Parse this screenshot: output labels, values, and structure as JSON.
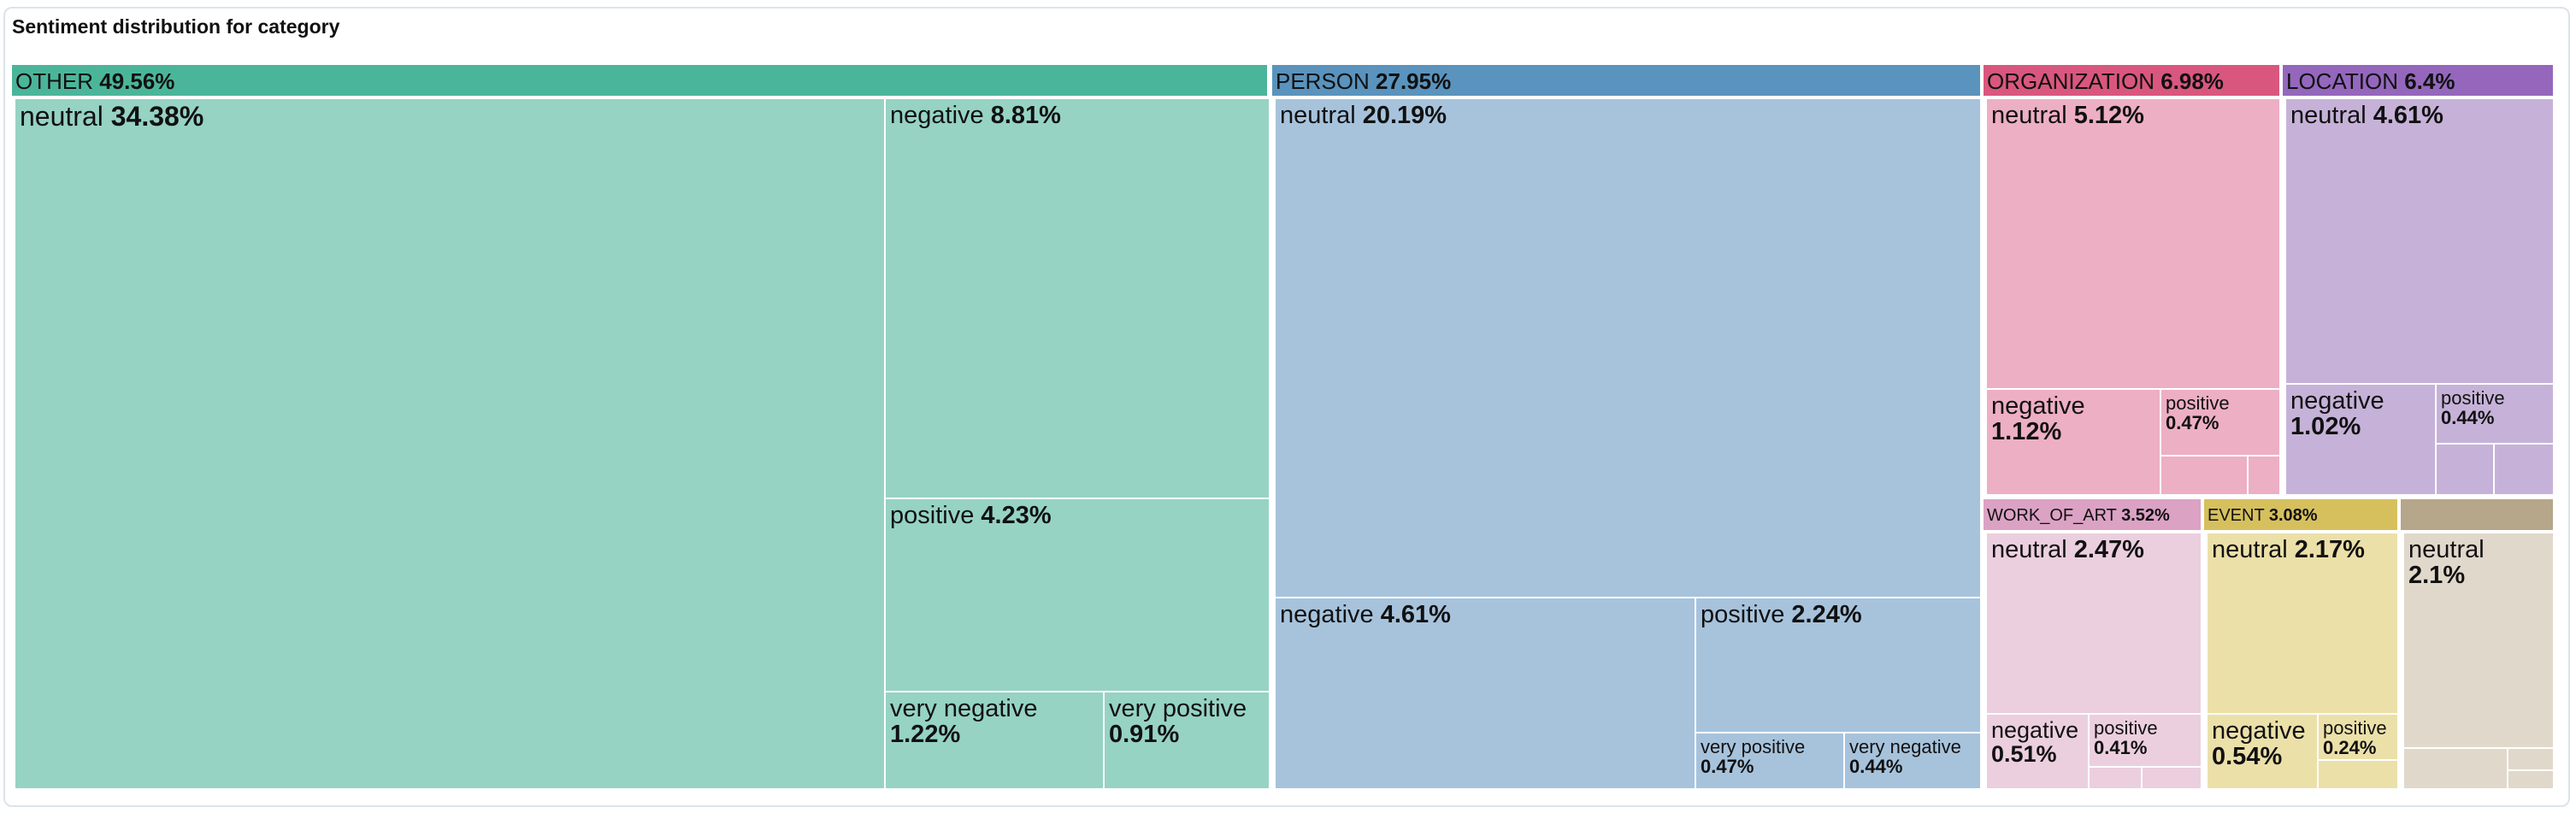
{
  "title": "Sentiment distribution for category",
  "chart_data": {
    "type": "treemap",
    "title": "Sentiment distribution for category",
    "categories": [
      {
        "name": "OTHER",
        "percent": "49.56%",
        "color": "#4bb59a",
        "leaf_color": "#96d3c3",
        "children": [
          {
            "name": "neutral",
            "percent": "34.38%"
          },
          {
            "name": "negative",
            "percent": "8.81%"
          },
          {
            "name": "positive",
            "percent": "4.23%"
          },
          {
            "name": "very negative",
            "percent": "1.22%"
          },
          {
            "name": "very positive",
            "percent": "0.91%"
          }
        ]
      },
      {
        "name": "PERSON",
        "percent": "27.95%",
        "color": "#5a93bd",
        "leaf_color": "#a7c3dc",
        "children": [
          {
            "name": "neutral",
            "percent": "20.19%"
          },
          {
            "name": "negative",
            "percent": "4.61%"
          },
          {
            "name": "positive",
            "percent": "2.24%"
          },
          {
            "name": "very positive",
            "percent": "0.47%"
          },
          {
            "name": "very negative",
            "percent": "0.44%"
          }
        ]
      },
      {
        "name": "ORGANIZATION",
        "percent": "6.98%",
        "color": "#d9577e",
        "leaf_color": "#edafc3",
        "children": [
          {
            "name": "neutral",
            "percent": "5.12%"
          },
          {
            "name": "negative",
            "percent": "1.12%"
          },
          {
            "name": "positive",
            "percent": "0.47%"
          },
          {
            "name": "",
            "percent": ""
          },
          {
            "name": "",
            "percent": ""
          }
        ]
      },
      {
        "name": "LOCATION",
        "percent": "6.4%",
        "color": "#9467bd",
        "leaf_color": "#c6b2d8",
        "children": [
          {
            "name": "neutral",
            "percent": "4.61%"
          },
          {
            "name": "negative",
            "percent": "1.02%"
          },
          {
            "name": "positive",
            "percent": "0.44%"
          },
          {
            "name": "",
            "percent": ""
          },
          {
            "name": "",
            "percent": ""
          }
        ]
      },
      {
        "name": "WORK_OF_ART",
        "percent": "3.52%",
        "color": "#dba2c4",
        "leaf_color": "#ebcfdf",
        "children": [
          {
            "name": "neutral",
            "percent": "2.47%"
          },
          {
            "name": "negative",
            "percent": "0.51%"
          },
          {
            "name": "positive",
            "percent": "0.41%"
          },
          {
            "name": "",
            "percent": ""
          },
          {
            "name": "",
            "percent": ""
          }
        ]
      },
      {
        "name": "EVENT",
        "percent": "3.08%",
        "color": "#d6c05e",
        "leaf_color": "#ece0a9",
        "children": [
          {
            "name": "neutral",
            "percent": "2.17%"
          },
          {
            "name": "negative",
            "percent": "0.54%"
          },
          {
            "name": "positive",
            "percent": "0.24%"
          },
          {
            "name": "",
            "percent": ""
          }
        ]
      },
      {
        "name": "",
        "percent": "",
        "color": "#b6a68a",
        "leaf_color": "#e0d8cb",
        "children": [
          {
            "name": "neutral",
            "percent": "2.1%"
          },
          {
            "name": "",
            "percent": ""
          },
          {
            "name": "",
            "percent": ""
          },
          {
            "name": "",
            "percent": ""
          }
        ]
      }
    ]
  }
}
